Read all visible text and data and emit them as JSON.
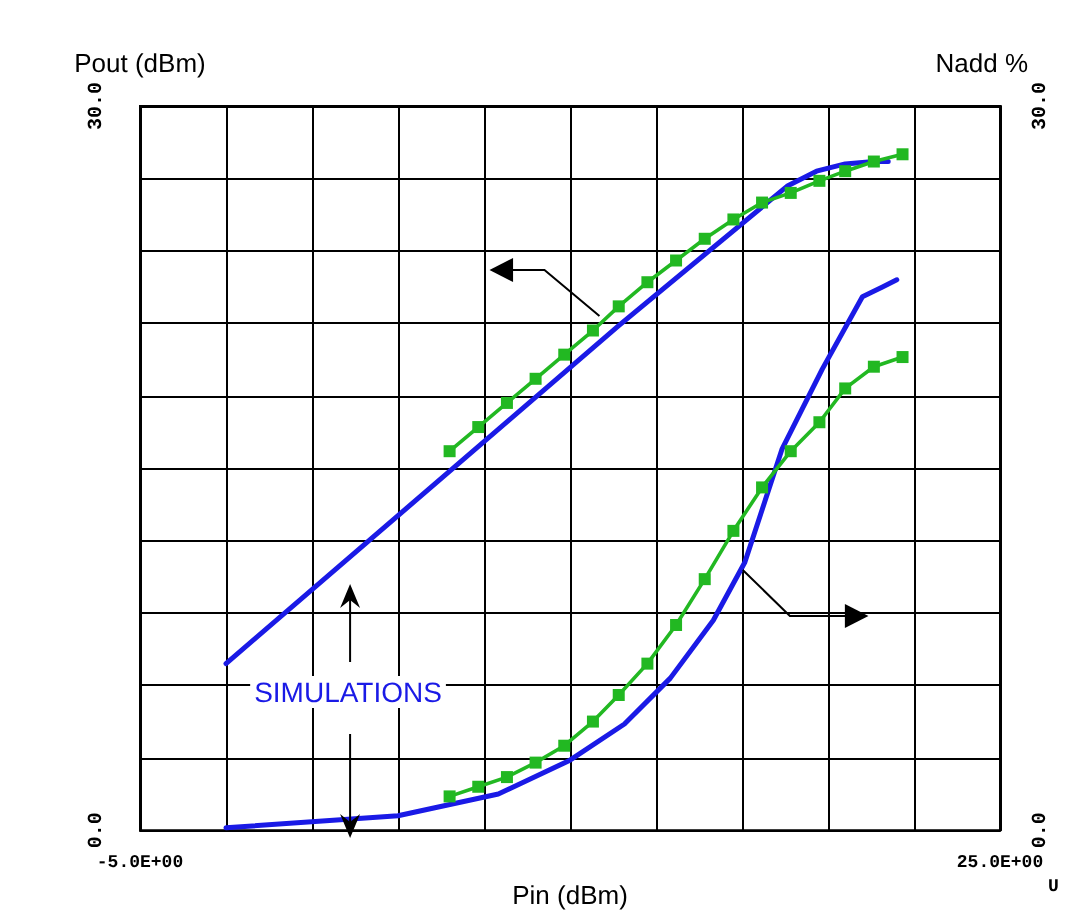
{
  "chart_data": {
    "type": "line",
    "xlabel": "Pin (dBm)",
    "ylabel": "Pout (dBm)",
    "y2label": "Nadd %",
    "annotations": [
      "SIMULATIONS",
      "U"
    ],
    "xlim": [
      -5,
      25
    ],
    "xticks": [
      {
        "value": -5,
        "label": "-5.0E+00"
      },
      {
        "value": -2,
        "label": null
      },
      {
        "value": 1,
        "label": null
      },
      {
        "value": 4,
        "label": null
      },
      {
        "value": 7,
        "label": null
      },
      {
        "value": 10,
        "label": null
      },
      {
        "value": 13,
        "label": null
      },
      {
        "value": 16,
        "label": null
      },
      {
        "value": 19,
        "label": null
      },
      {
        "value": 22,
        "label": null
      },
      {
        "value": 25,
        "label": "25.0E+00"
      }
    ],
    "ylim": [
      0,
      30
    ],
    "yticks": [
      {
        "value": 0,
        "label": "0.0"
      },
      {
        "value": 3,
        "label": null
      },
      {
        "value": 6,
        "label": null
      },
      {
        "value": 9,
        "label": null
      },
      {
        "value": 12,
        "label": null
      },
      {
        "value": 15,
        "label": null
      },
      {
        "value": 18,
        "label": null
      },
      {
        "value": 21,
        "label": null
      },
      {
        "value": 24,
        "label": null
      },
      {
        "value": 27,
        "label": null
      },
      {
        "value": 30,
        "label": "30.0"
      }
    ],
    "y2lim": [
      0,
      30
    ],
    "y2ticks": [
      {
        "value": 0,
        "label": "0.0"
      },
      {
        "value": 30,
        "label": "30.0"
      }
    ],
    "grid": true,
    "line_style": "solid",
    "series": [
      {
        "color": "#1a1ae6",
        "marker": "none",
        "x": [
          -2,
          11.7,
          17.6,
          18.6,
          19.6,
          20.6,
          21.1
        ],
        "values": [
          6.9,
          20.9,
          26.7,
          27.3,
          27.6,
          27.7,
          27.7
        ]
      },
      {
        "color": "#22b822",
        "marker": "square",
        "x": [
          5.8,
          6.8,
          7.8,
          8.8,
          9.8,
          10.8,
          11.7,
          12.7,
          13.7,
          14.7,
          15.7,
          16.7,
          17.7,
          18.7,
          19.6,
          20.6,
          21.6
        ],
        "values": [
          15.7,
          16.7,
          17.7,
          18.7,
          19.7,
          20.7,
          21.7,
          22.7,
          23.6,
          24.5,
          25.3,
          26.0,
          26.4,
          26.9,
          27.3,
          27.7,
          28.0
        ]
      },
      {
        "color": "#1a1ae6",
        "marker": "none",
        "axis": "y2",
        "x": [
          -2,
          4,
          7.5,
          10,
          11.9,
          13.5,
          15,
          16.1,
          17.4,
          18.8,
          20.2,
          20.9,
          21.4
        ],
        "values": [
          0.1,
          0.6,
          1.5,
          2.9,
          4.4,
          6.3,
          8.7,
          11.1,
          15.8,
          19.1,
          22.1,
          22.5,
          22.8
        ]
      },
      {
        "color": "#22b822",
        "marker": "square",
        "axis": "y2",
        "x": [
          5.8,
          6.8,
          7.8,
          8.8,
          9.8,
          10.8,
          11.7,
          12.7,
          13.7,
          14.7,
          15.7,
          16.7,
          17.7,
          18.7,
          19.6,
          20.6,
          21.6
        ],
        "values": [
          1.4,
          1.8,
          2.2,
          2.8,
          3.5,
          4.5,
          5.6,
          6.9,
          8.5,
          10.4,
          12.4,
          14.2,
          15.7,
          16.9,
          18.3,
          19.2,
          19.6
        ]
      }
    ]
  }
}
